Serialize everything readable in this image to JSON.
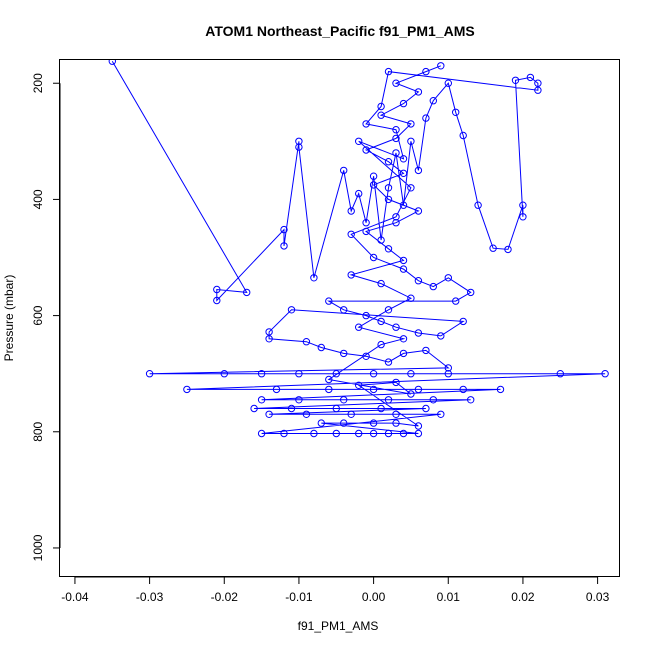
{
  "chart_data": {
    "type": "scatter",
    "title": "ATOM1 Northeast_Pacific f91_PM1_AMS",
    "xlabel": "f91_PM1_AMS",
    "ylabel": "Pressure (mbar)",
    "xlim": [
      -0.042,
      0.033
    ],
    "ylim": [
      1050,
      160
    ],
    "y_reversed": true,
    "x_ticks": [
      -0.04,
      -0.03,
      -0.02,
      -0.01,
      0.0,
      0.01,
      0.02,
      0.03
    ],
    "x_tick_labels": [
      "-0.04",
      "-0.03",
      "-0.02",
      "-0.01",
      "0.00",
      "0.01",
      "0.02",
      "0.03"
    ],
    "y_ticks": [
      200,
      400,
      600,
      800,
      1000
    ],
    "y_tick_labels": [
      "200",
      "400",
      "600",
      "800",
      "1000"
    ],
    "grid": false,
    "series": [
      {
        "color": "#0000ff",
        "marker": "open-circle",
        "connected": true,
        "points": [
          [
            -0.035,
            162
          ],
          [
            -0.017,
            560
          ],
          [
            -0.021,
            555
          ],
          [
            -0.021,
            574
          ],
          [
            -0.012,
            452
          ],
          [
            -0.012,
            480
          ],
          [
            -0.01,
            300
          ],
          [
            -0.01,
            310
          ],
          [
            -0.008,
            535
          ],
          [
            -0.004,
            350
          ],
          [
            -0.003,
            420
          ],
          [
            -0.002,
            390
          ],
          [
            -0.001,
            440
          ],
          [
            0.0,
            360
          ],
          [
            0.001,
            470
          ],
          [
            0.002,
            380
          ],
          [
            0.003,
            320
          ],
          [
            0.004,
            410
          ],
          [
            0.005,
            300
          ],
          [
            0.006,
            350
          ],
          [
            0.007,
            260
          ],
          [
            0.008,
            230
          ],
          [
            0.01,
            200
          ],
          [
            0.011,
            250
          ],
          [
            0.012,
            290
          ],
          [
            0.014,
            410
          ],
          [
            0.016,
            484
          ],
          [
            0.018,
            486
          ],
          [
            0.02,
            410
          ],
          [
            0.02,
            430
          ],
          [
            0.019,
            195
          ],
          [
            0.021,
            190
          ],
          [
            0.022,
            200
          ],
          [
            0.022,
            212
          ],
          [
            0.002,
            180
          ],
          [
            0.001,
            240
          ],
          [
            -0.001,
            270
          ],
          [
            0.003,
            280
          ],
          [
            0.004,
            330
          ],
          [
            -0.002,
            300
          ],
          [
            0.005,
            380
          ],
          [
            0.003,
            430
          ],
          [
            -0.003,
            460
          ],
          [
            0.0,
            500
          ],
          [
            0.004,
            520
          ],
          [
            0.006,
            540
          ],
          [
            0.008,
            550
          ],
          [
            0.01,
            535
          ],
          [
            0.013,
            560
          ],
          [
            0.011,
            575
          ],
          [
            -0.006,
            575
          ],
          [
            -0.004,
            590
          ],
          [
            -0.001,
            600
          ],
          [
            0.001,
            610
          ],
          [
            0.003,
            620
          ],
          [
            0.006,
            630
          ],
          [
            0.009,
            635
          ],
          [
            0.012,
            610
          ],
          [
            -0.011,
            590
          ],
          [
            -0.014,
            628
          ],
          [
            -0.014,
            640
          ],
          [
            -0.009,
            645
          ],
          [
            -0.007,
            655
          ],
          [
            -0.004,
            665
          ],
          [
            -0.001,
            670
          ],
          [
            0.002,
            680
          ],
          [
            0.004,
            665
          ],
          [
            0.007,
            660
          ],
          [
            0.01,
            690
          ],
          [
            -0.03,
            700
          ],
          [
            -0.02,
            700
          ],
          [
            -0.015,
            700
          ],
          [
            -0.01,
            700
          ],
          [
            -0.005,
            700
          ],
          [
            0.0,
            700
          ],
          [
            0.005,
            700
          ],
          [
            0.01,
            700
          ],
          [
            0.025,
            700
          ],
          [
            0.031,
            700
          ],
          [
            -0.025,
            727
          ],
          [
            -0.013,
            727
          ],
          [
            -0.006,
            727
          ],
          [
            0.0,
            727
          ],
          [
            0.006,
            727
          ],
          [
            0.012,
            727
          ],
          [
            0.017,
            727
          ],
          [
            -0.015,
            745
          ],
          [
            -0.01,
            745
          ],
          [
            -0.004,
            745
          ],
          [
            0.002,
            745
          ],
          [
            0.008,
            745
          ],
          [
            0.013,
            745
          ],
          [
            -0.016,
            760
          ],
          [
            -0.011,
            760
          ],
          [
            -0.005,
            760
          ],
          [
            0.001,
            760
          ],
          [
            0.007,
            760
          ],
          [
            -0.014,
            770
          ],
          [
            -0.009,
            770
          ],
          [
            -0.003,
            770
          ],
          [
            0.003,
            770
          ],
          [
            0.009,
            770
          ],
          [
            -0.015,
            803
          ],
          [
            -0.012,
            803
          ],
          [
            -0.008,
            803
          ],
          [
            -0.005,
            803
          ],
          [
            -0.002,
            803
          ],
          [
            0.0,
            803
          ],
          [
            0.002,
            803
          ],
          [
            0.004,
            803
          ],
          [
            0.006,
            803
          ],
          [
            -0.007,
            785
          ],
          [
            -0.004,
            785
          ],
          [
            0.0,
            785
          ],
          [
            0.003,
            785
          ],
          [
            0.006,
            790
          ],
          [
            -0.002,
            720
          ],
          [
            0.003,
            715
          ],
          [
            0.005,
            735
          ],
          [
            -0.006,
            710
          ],
          [
            0.001,
            650
          ],
          [
            0.004,
            640
          ],
          [
            -0.002,
            620
          ],
          [
            0.002,
            590
          ],
          [
            0.005,
            570
          ],
          [
            0.001,
            545
          ],
          [
            -0.003,
            530
          ],
          [
            0.004,
            505
          ],
          [
            0.002,
            485
          ],
          [
            -0.001,
            455
          ],
          [
            0.003,
            440
          ],
          [
            0.006,
            420
          ],
          [
            0.002,
            400
          ],
          [
            0.0,
            375
          ],
          [
            0.004,
            355
          ],
          [
            0.002,
            335
          ],
          [
            -0.001,
            315
          ],
          [
            0.003,
            295
          ],
          [
            0.005,
            270
          ],
          [
            0.001,
            255
          ],
          [
            0.004,
            235
          ],
          [
            0.006,
            215
          ],
          [
            0.003,
            200
          ],
          [
            0.007,
            180
          ],
          [
            0.009,
            170
          ]
        ]
      }
    ]
  }
}
